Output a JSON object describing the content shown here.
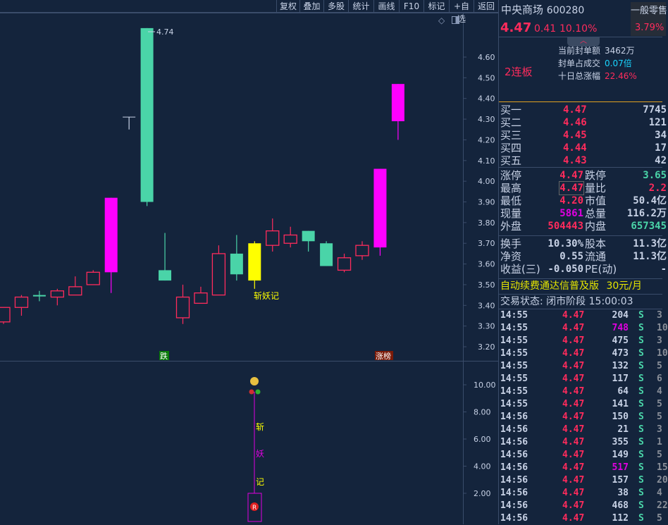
{
  "toolbar": {
    "items": [
      "复权",
      "叠加",
      "多股",
      "统计",
      "画线",
      "F10",
      "标记",
      "+自选",
      "返回"
    ]
  },
  "chart_data": {
    "type": "candlestick",
    "ylim": [
      3.15,
      4.78
    ],
    "y_ticks": [
      "4.60",
      "4.50",
      "4.40",
      "4.30",
      "4.20",
      "4.10",
      "4.00",
      "3.90",
      "3.80",
      "3.70",
      "3.60",
      "3.50",
      "3.40",
      "3.30",
      "3.20"
    ],
    "high_label": "4.74",
    "candles": [
      {
        "o": 3.32,
        "c": 3.39,
        "h": 3.39,
        "l": 3.31,
        "style": "up"
      },
      {
        "o": 3.39,
        "c": 3.44,
        "h": 3.45,
        "l": 3.35,
        "style": "up"
      },
      {
        "o": 3.45,
        "c": 3.45,
        "h": 3.47,
        "l": 3.42,
        "style": "down"
      },
      {
        "o": 3.44,
        "c": 3.47,
        "h": 3.48,
        "l": 3.4,
        "style": "up"
      },
      {
        "o": 3.45,
        "c": 3.49,
        "h": 3.54,
        "l": 3.45,
        "style": "up"
      },
      {
        "o": 3.5,
        "c": 3.56,
        "h": 3.57,
        "l": 3.5,
        "style": "up"
      },
      {
        "o": 3.56,
        "c": 3.92,
        "h": 3.92,
        "l": 3.46,
        "style": "limit"
      },
      {
        "o": 4.31,
        "c": 4.31,
        "h": 4.31,
        "l": 4.25,
        "style": "flat"
      },
      {
        "o": 4.74,
        "c": 3.9,
        "h": 4.74,
        "l": 3.88,
        "style": "down"
      },
      {
        "o": 3.57,
        "c": 3.52,
        "h": 3.75,
        "l": 3.52,
        "style": "down"
      },
      {
        "o": 3.34,
        "c": 3.44,
        "h": 3.5,
        "l": 3.31,
        "style": "up"
      },
      {
        "o": 3.41,
        "c": 3.46,
        "h": 3.49,
        "l": 3.41,
        "style": "up"
      },
      {
        "o": 3.45,
        "c": 3.65,
        "h": 3.69,
        "l": 3.45,
        "style": "up"
      },
      {
        "o": 3.65,
        "c": 3.55,
        "h": 3.74,
        "l": 3.52,
        "style": "down"
      },
      {
        "o": 3.52,
        "c": 3.7,
        "h": 3.71,
        "l": 3.48,
        "style": "signal"
      },
      {
        "o": 3.69,
        "c": 3.76,
        "h": 3.82,
        "l": 3.66,
        "style": "up"
      },
      {
        "o": 3.7,
        "c": 3.74,
        "h": 3.78,
        "l": 3.68,
        "style": "up"
      },
      {
        "o": 3.76,
        "c": 3.71,
        "h": 3.76,
        "l": 3.66,
        "style": "down"
      },
      {
        "o": 3.7,
        "c": 3.59,
        "h": 3.71,
        "l": 3.59,
        "style": "down"
      },
      {
        "o": 3.57,
        "c": 3.63,
        "h": 3.65,
        "l": 3.56,
        "style": "up"
      },
      {
        "o": 3.64,
        "c": 3.69,
        "h": 3.71,
        "l": 3.62,
        "style": "up"
      },
      {
        "o": 3.68,
        "c": 4.06,
        "h": 4.06,
        "l": 3.64,
        "style": "limit"
      },
      {
        "o": 4.29,
        "c": 4.47,
        "h": 4.47,
        "l": 4.2,
        "style": "limit"
      }
    ],
    "signal_label": "斩妖记",
    "tag_fall": "跌",
    "tag_rank": "涨榜",
    "colors": {
      "up": "#ff2b5c",
      "down": "#4ad4a8",
      "limit": "#ff00ff",
      "signal": "#ffff00",
      "flat": "#c8d2e6"
    }
  },
  "indicator": {
    "y_ticks": [
      "10.00",
      "8.00",
      "6.00",
      "4.00",
      "2.00"
    ],
    "chars": [
      "斩",
      "妖",
      "记"
    ],
    "marker_r": "R"
  },
  "quote": {
    "name": "中央商场",
    "code": "600280",
    "price": "4.47",
    "change": "0.41",
    "pct": "10.10%",
    "sector_name": "一般零售",
    "sector_pct": "3.79%"
  },
  "limit_info": {
    "streak": "2连板",
    "rows": [
      {
        "label": "当前封单额",
        "value": "3462万"
      },
      {
        "label": "封单占成交",
        "value": "0.07倍"
      },
      {
        "label": "十日总涨幅",
        "value": "22.46%"
      }
    ]
  },
  "orderbook": [
    {
      "label": "买一",
      "price": "4.47",
      "vol": "7745"
    },
    {
      "label": "买二",
      "price": "4.46",
      "vol": "121"
    },
    {
      "label": "买三",
      "price": "4.45",
      "vol": "34"
    },
    {
      "label": "买四",
      "price": "4.44",
      "vol": "17"
    },
    {
      "label": "买五",
      "price": "4.43",
      "vol": "42"
    }
  ],
  "stats1": [
    {
      "l1": "涨停",
      "v1": "4.47",
      "l2": "跌停",
      "v2": "3.65"
    },
    {
      "l1": "最高",
      "v1": "4.47",
      "l2": "量比",
      "v2": "2.2"
    },
    {
      "l1": "最低",
      "v1": "4.20",
      "l2": "市值",
      "v2": "50.4亿"
    },
    {
      "l1": "现量",
      "v1": "5861",
      "l2": "总量",
      "v2": "116.2万"
    },
    {
      "l1": "外盘",
      "v1": "504443",
      "l2": "内盘",
      "v2": "657345"
    }
  ],
  "stats2": [
    {
      "l1": "换手",
      "v1": "10.30%",
      "l2": "股本",
      "v2": "11.3亿"
    },
    {
      "l1": "净资",
      "v1": "0.55",
      "l2": "流通",
      "v2": "11.3亿"
    },
    {
      "l1": "收益(三)",
      "v1": "-0.050",
      "l2": "PE(动)",
      "v2": "-"
    }
  ],
  "ad": {
    "text": "自动续费通达信普及版",
    "price": "30元/月"
  },
  "status": {
    "label": "交易状态: 闭市阶段",
    "time": "15:00:03"
  },
  "ticks": [
    {
      "t": "14:55",
      "p": "4.47",
      "v": "204",
      "s": "S",
      "n": "3"
    },
    {
      "t": "14:55",
      "p": "4.47",
      "v": "748",
      "s": "S",
      "n": "10",
      "big": true
    },
    {
      "t": "14:55",
      "p": "4.47",
      "v": "475",
      "s": "S",
      "n": "3"
    },
    {
      "t": "14:55",
      "p": "4.47",
      "v": "473",
      "s": "S",
      "n": "10"
    },
    {
      "t": "14:55",
      "p": "4.47",
      "v": "132",
      "s": "S",
      "n": "5"
    },
    {
      "t": "14:55",
      "p": "4.47",
      "v": "117",
      "s": "S",
      "n": "6"
    },
    {
      "t": "14:55",
      "p": "4.47",
      "v": "64",
      "s": "S",
      "n": "4"
    },
    {
      "t": "14:55",
      "p": "4.47",
      "v": "141",
      "s": "S",
      "n": "5"
    },
    {
      "t": "14:56",
      "p": "4.47",
      "v": "150",
      "s": "S",
      "n": "5"
    },
    {
      "t": "14:56",
      "p": "4.47",
      "v": "21",
      "s": "S",
      "n": "3"
    },
    {
      "t": "14:56",
      "p": "4.47",
      "v": "355",
      "s": "S",
      "n": "1"
    },
    {
      "t": "14:56",
      "p": "4.47",
      "v": "149",
      "s": "S",
      "n": "5"
    },
    {
      "t": "14:56",
      "p": "4.47",
      "v": "517",
      "s": "S",
      "n": "15",
      "big": true
    },
    {
      "t": "14:56",
      "p": "4.47",
      "v": "157",
      "s": "S",
      "n": "20"
    },
    {
      "t": "14:56",
      "p": "4.47",
      "v": "38",
      "s": "S",
      "n": "4"
    },
    {
      "t": "14:56",
      "p": "4.47",
      "v": "468",
      "s": "S",
      "n": "22"
    },
    {
      "t": "14:56",
      "p": "4.47",
      "v": "112",
      "s": "S",
      "n": "5"
    }
  ]
}
